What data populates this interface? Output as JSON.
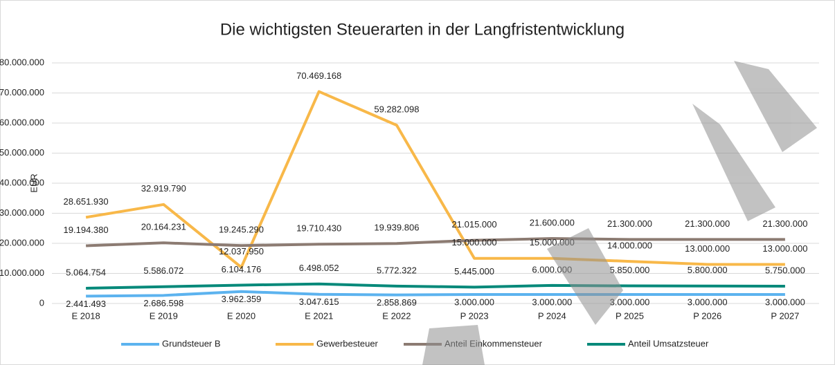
{
  "chart_data": {
    "type": "line",
    "title": "Die wichtigsten Steuerarten in der Langfristentwicklung",
    "y_label": "EUR",
    "categories": [
      "E 2018",
      "E 2019",
      "E 2020",
      "E 2021",
      "E 2022",
      "P 2023",
      "P 2024",
      "P 2025",
      "P 2026",
      "P 2027"
    ],
    "ylim": [
      0,
      80000000
    ],
    "yticks": [
      0,
      {
        "value": 10000000,
        "label": "10.000.000"
      },
      {
        "value": 20000000,
        "label": "20.000.000"
      },
      {
        "value": 30000000,
        "label": "30.000.000"
      },
      {
        "value": 40000000,
        "label": "40.000.000"
      },
      {
        "value": 50000000,
        "label": "50.000.000"
      },
      {
        "value": 60000000,
        "label": "60.000.000"
      },
      {
        "value": 70000000,
        "label": "70.000.000"
      },
      {
        "value": 80000000,
        "label": "80.000.000"
      }
    ],
    "grid": true,
    "legend": "bottom",
    "series": [
      {
        "name": "Grundsteuer B",
        "color": "#5cb3ef",
        "values": [
          2441493,
          2686598,
          3962359,
          3047615,
          2858869,
          3000000,
          3000000,
          3000000,
          3000000,
          3000000
        ],
        "value_labels": [
          "2.441.493",
          "2.686.598",
          "3.962.359",
          "3.047.615",
          "2.858.869",
          "3.000.000",
          "3.000.000",
          "3.000.000",
          "3.000.000",
          "3.000.000"
        ]
      },
      {
        "name": "Gewerbesteuer",
        "color": "#f8b849",
        "values": [
          28651930,
          32919790,
          12037950,
          70469168,
          59282098,
          15000000,
          15000000,
          14000000,
          13000000,
          13000000
        ],
        "value_labels": [
          "28.651.930",
          "32.919.790",
          "12.037.950",
          "70.469.168",
          "59.282.098",
          "15.000.000",
          "15.000.000",
          "14.000.000",
          "13.000.000",
          "13.000.000"
        ]
      },
      {
        "name": "Anteil Einkommensteuer",
        "color": "#8c7b72",
        "values": [
          19194380,
          20164231,
          19245290,
          19710430,
          19939806,
          21015000,
          21600000,
          21300000,
          21300000,
          21300000
        ],
        "value_labels": [
          "19.194.380",
          "20.164.231",
          "19.245.290",
          "19.710.430",
          "19.939.806",
          "21.015.000",
          "21.600.000",
          "21.300.000",
          "21.300.000",
          "21.300.000"
        ]
      },
      {
        "name": "Anteil Umsatzsteuer",
        "color": "#05897a",
        "values": [
          5064754,
          5586072,
          6104176,
          6498052,
          5772322,
          5445000,
          6000000,
          5850000,
          5800000,
          5750000
        ],
        "value_labels": [
          "5.064.754",
          "5.586.072",
          "6.104.176",
          "6.498.052",
          "5.772.322",
          "5.445.000",
          "6.000.000",
          "5.850.000",
          "5.800.000",
          "5.750.000"
        ]
      }
    ]
  }
}
